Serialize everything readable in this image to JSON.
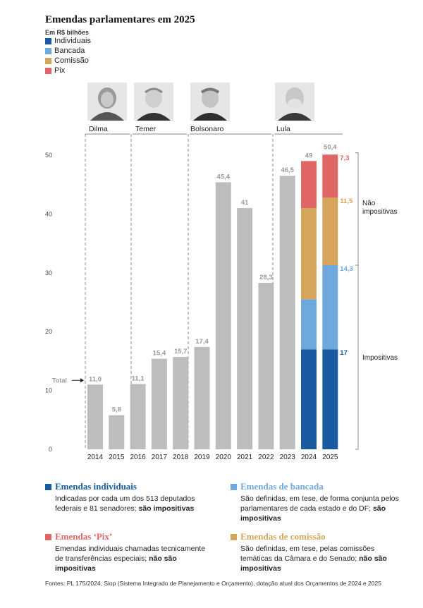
{
  "title": "Emendas parlamentares em 2025",
  "unit": "Em R$ bilhões",
  "legend": [
    {
      "label": "Individuais",
      "color": "#1a5aa0"
    },
    {
      "label": "Bancada",
      "color": "#6fa8dc"
    },
    {
      "label": "Comissão",
      "color": "#d4a55a"
    },
    {
      "label": "Pix",
      "color": "#e06666"
    }
  ],
  "presidents": [
    {
      "name": "Dilma"
    },
    {
      "name": "Temer"
    },
    {
      "name": "Bolsonaro"
    },
    {
      "name": "Lula"
    }
  ],
  "chart_data": {
    "type": "bar",
    "categories": [
      "2014",
      "2015",
      "2016",
      "2017",
      "2018",
      "2019",
      "2020",
      "2021",
      "2022",
      "2023",
      "2024",
      "2025"
    ],
    "totals": [
      11.0,
      5.8,
      11.1,
      15.4,
      15.7,
      17.4,
      45.4,
      41,
      28.3,
      46.5,
      49,
      50.4
    ],
    "total_labels": [
      "11,0",
      "5,8",
      "11,1",
      "15,4",
      "15,7",
      "17,4",
      "45,4",
      "41",
      "28,3",
      "46,5",
      "49",
      "50,4"
    ],
    "stacked": {
      "2024": {
        "individuais": 17,
        "bancada": 8.5,
        "comissao": 15.5,
        "pix": 8.0
      },
      "2025": {
        "individuais": 17,
        "bancada": 14.3,
        "comissao": 11.5,
        "pix": 7.3
      }
    },
    "segment_labels_2025": {
      "individuais": "17",
      "bancada": "14,3",
      "comissao": "11,5",
      "pix": "7,3"
    },
    "ylim": [
      0,
      50
    ],
    "yticks": [
      0,
      10,
      20,
      30,
      40,
      50
    ],
    "total_annotation": "Total",
    "brackets": {
      "nao_impositivas": "Não impositivas",
      "impositivas": "Impositivas"
    },
    "colors": {
      "gray": "#bdbdbd",
      "individuais": "#1a5aa0",
      "bancada": "#6fa8dc",
      "comissao": "#d4a55a",
      "pix": "#e06666"
    }
  },
  "notes": [
    {
      "title": "Emendas individuais",
      "color": "#1a5aa0",
      "text": "Indicadas por cada um dos 513 deputados federais e 81 senadores;",
      "bold": "são impositivas"
    },
    {
      "title": "Emendas de bancada",
      "color": "#6fa8dc",
      "text": "São definidas, em tese, de forma conjunta pelos parlamentares de cada estado e do DF;",
      "bold": "são impositivas"
    },
    {
      "title": "Emendas ‘Pix’",
      "color": "#e06666",
      "text": "Emendas individuais chamadas tecnicamente de transferências especiais;",
      "bold": "não são impositivas"
    },
    {
      "title": "Emendas de comissão",
      "color": "#d4a55a",
      "text": "São definidas, em tese, pelas comissões temáticas da Câmara e do Senado;",
      "bold": "não são impositivas"
    }
  ],
  "source": "Fontes: PL 175/2024, Siop (Sistema Integrado de Planejamento e Orçamento), dotação atual dos Orçamentos de 2024 e 2025"
}
